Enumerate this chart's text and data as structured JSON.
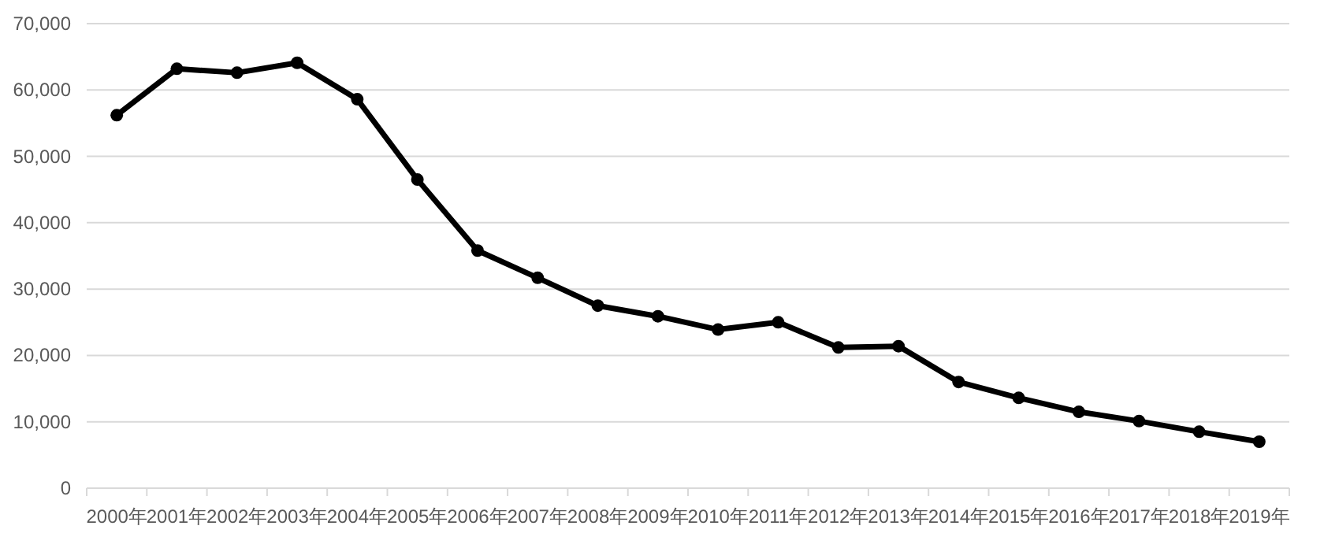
{
  "chart_data": {
    "type": "line",
    "categories": [
      "2000年",
      "2001年",
      "2002年",
      "2003年",
      "2004年",
      "2005年",
      "2006年",
      "2007年",
      "2008年",
      "2009年",
      "2010年",
      "2011年",
      "2012年",
      "2013年",
      "2014年",
      "2015年",
      "2016年",
      "2017年",
      "2018年",
      "2019年"
    ],
    "series": [
      {
        "color": "#000000",
        "values": [
          56200,
          63200,
          62600,
          64100,
          58600,
          46500,
          35800,
          31700,
          27500,
          25900,
          23900,
          25000,
          21200,
          21400,
          16000,
          13600,
          11500,
          10100,
          8500,
          7000
        ]
      }
    ],
    "ylim": [
      0,
      70000
    ],
    "yticks": [
      {
        "value": 0,
        "label": "0"
      },
      {
        "value": 10000,
        "label": "10,000"
      },
      {
        "value": 20000,
        "label": "20,000"
      },
      {
        "value": 30000,
        "label": "30,000"
      },
      {
        "value": 40000,
        "label": "40,000"
      },
      {
        "value": 50000,
        "label": "50,000"
      },
      {
        "value": 60000,
        "label": "60,000"
      },
      {
        "value": 70000,
        "label": "70,000"
      }
    ],
    "grid": "y",
    "marker": "circle",
    "line_style": "solid"
  }
}
